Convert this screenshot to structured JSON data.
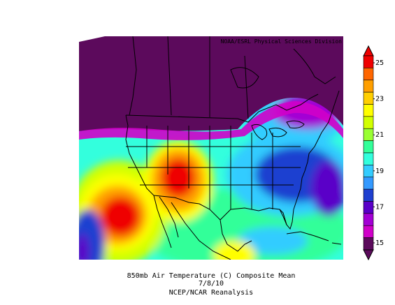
{
  "map": {
    "credit": "NOAA/ESRL Physical Sciences Division",
    "caption_line1": "850mb Air Temperature (C) Composite Mean",
    "caption_line2": "7/8/10",
    "caption_line3": "NCEP/NCAR Reanalysis",
    "region": "Continental United States, southern Canada, Mexico and Caribbean"
  },
  "colorbar": {
    "tick_labels": [
      "25",
      "23",
      "21",
      "19",
      "17",
      "15"
    ],
    "range": [
      15,
      25
    ],
    "colors": [
      "#ef0000",
      "#ff6600",
      "#ff9f00",
      "#ffcf00",
      "#ffff00",
      "#d2ff00",
      "#99ff33",
      "#33ff99",
      "#33ffdd",
      "#33ccff",
      "#3399ff",
      "#1f3fd0",
      "#5a00c8",
      "#a300d4",
      "#d000c9",
      "#5c0a5c"
    ]
  }
}
